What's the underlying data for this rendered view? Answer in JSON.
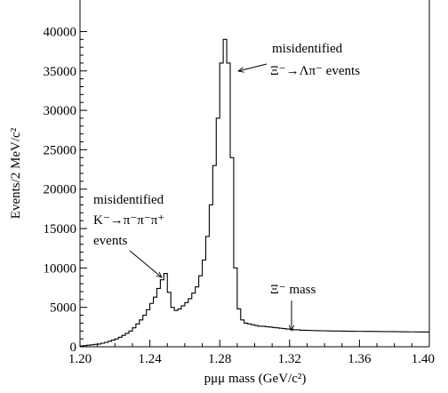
{
  "chart_data": {
    "type": "histogram",
    "xlabel": "pμμ mass (GeV/c²)",
    "ylabel": "Events/2 MeV/c²",
    "xlim": [
      1.2,
      1.4
    ],
    "ylim": [
      0,
      44000
    ],
    "x_ticks": [
      "1.20",
      "1.24",
      "1.28",
      "1.32",
      "1.36",
      "1.40"
    ],
    "y_ticks": [
      "0",
      "5000",
      "10000",
      "15000",
      "20000",
      "25000",
      "30000",
      "35000",
      "40000"
    ],
    "bin_width": 0.002,
    "bin_low_edges": [
      1.2,
      1.202,
      1.204,
      1.206,
      1.208,
      1.21,
      1.212,
      1.214,
      1.216,
      1.218,
      1.22,
      1.222,
      1.224,
      1.226,
      1.228,
      1.23,
      1.232,
      1.234,
      1.236,
      1.238,
      1.24,
      1.242,
      1.244,
      1.246,
      1.248,
      1.25,
      1.252,
      1.254,
      1.256,
      1.258,
      1.26,
      1.262,
      1.264,
      1.266,
      1.268,
      1.27,
      1.272,
      1.274,
      1.276,
      1.278,
      1.28,
      1.282,
      1.284,
      1.286,
      1.288,
      1.29,
      1.292,
      1.294,
      1.296,
      1.298,
      1.3,
      1.302,
      1.304,
      1.306,
      1.308,
      1.31,
      1.312,
      1.314,
      1.316,
      1.318,
      1.32,
      1.322,
      1.324,
      1.326,
      1.328,
      1.33,
      1.332,
      1.334,
      1.336,
      1.338,
      1.34,
      1.342,
      1.344,
      1.346,
      1.348,
      1.35,
      1.352,
      1.354,
      1.356,
      1.358,
      1.36,
      1.362,
      1.364,
      1.366,
      1.368,
      1.37,
      1.372,
      1.374,
      1.376,
      1.378,
      1.38,
      1.382,
      1.384,
      1.386,
      1.388,
      1.39,
      1.392,
      1.394,
      1.396,
      1.398
    ],
    "counts": [
      100,
      150,
      200,
      250,
      300,
      350,
      450,
      550,
      700,
      850,
      1000,
      1200,
      1450,
      1700,
      2000,
      2400,
      2900,
      3400,
      4000,
      4700,
      5500,
      6300,
      7400,
      8500,
      9300,
      6900,
      5000,
      4600,
      4800,
      5200,
      5600,
      6100,
      6800,
      7600,
      9000,
      11000,
      14000,
      18000,
      23000,
      29000,
      36000,
      39000,
      36000,
      24000,
      10000,
      4800,
      3400,
      3000,
      2900,
      2800,
      2700,
      2600,
      2600,
      2550,
      2500,
      2450,
      2400,
      2350,
      2300,
      2250,
      2200,
      2150,
      2150,
      2100,
      2100,
      2080,
      2060,
      2050,
      2040,
      2030,
      2020,
      2010,
      2000,
      2000,
      1990,
      1980,
      1980,
      1970,
      1970,
      1960,
      1960,
      1950,
      1950,
      1950,
      1940,
      1940,
      1930,
      1930,
      1920,
      1920,
      1910,
      1910,
      1900,
      1900,
      1890,
      1890,
      1880,
      1880,
      1870,
      1870
    ]
  },
  "annotations": {
    "kaon": {
      "lines": [
        "misidentified",
        "K⁻→π⁻π⁻π⁺",
        "events"
      ],
      "x": 1.245,
      "y": 8800
    },
    "xi": {
      "lines": [
        "misidentified",
        "Ξ⁻→Λπ⁻ events"
      ],
      "x": 1.285,
      "y": 35500
    },
    "xi_mass": {
      "label": "Ξ⁻ mass",
      "x": 1.3217,
      "y": 2500
    }
  }
}
